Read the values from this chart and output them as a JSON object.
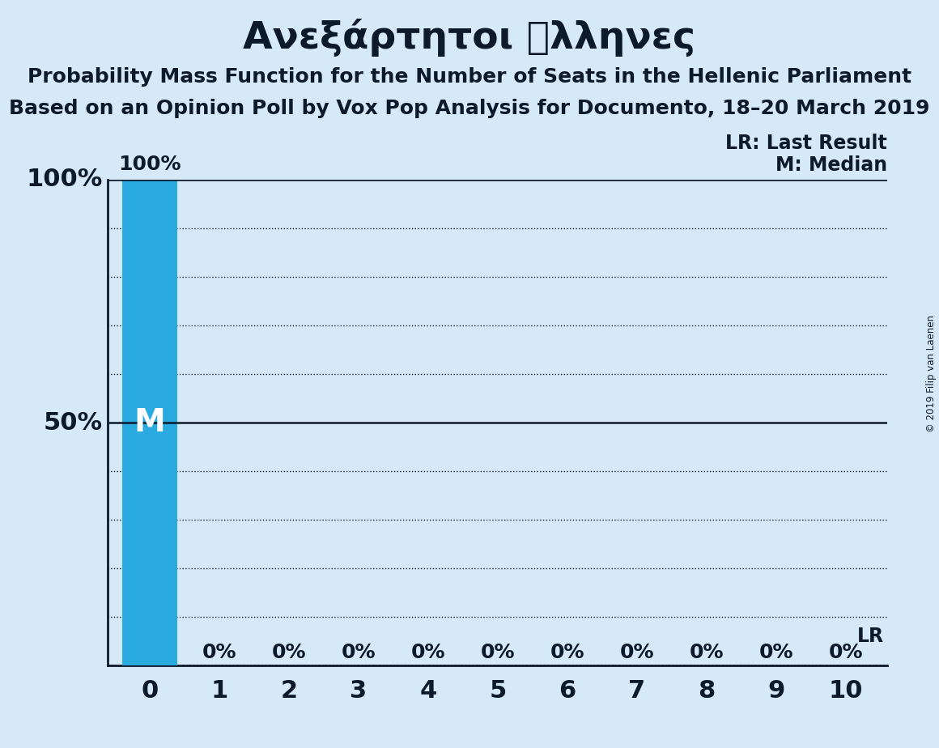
{
  "title": "Ανεξάρτητοι ἞λληνες",
  "subtitle1": "Probability Mass Function for the Number of Seats in the Hellenic Parliament",
  "subtitle2": "Based on an Opinion Poll by Vox Pop Analysis for Documento, 18–20 March 2019",
  "copyright": "© 2019 Filip van Laenen",
  "x_values": [
    0,
    1,
    2,
    3,
    4,
    5,
    6,
    7,
    8,
    9,
    10
  ],
  "y_values": [
    1.0,
    0.0,
    0.0,
    0.0,
    0.0,
    0.0,
    0.0,
    0.0,
    0.0,
    0.0,
    0.0
  ],
  "bar_color": "#29abe2",
  "background_color": "#d6e9f8",
  "median_value": 0,
  "last_result_value": 0,
  "yticks": [
    0.0,
    0.1,
    0.2,
    0.3,
    0.4,
    0.5,
    0.6,
    0.7,
    0.8,
    0.9,
    1.0
  ],
  "bar_label_100": "100%",
  "bar_label_0": "0%",
  "median_label": "M",
  "lr_label": "LR",
  "legend_lr": "LR: Last Result",
  "legend_m": "M: Median",
  "title_fontsize": 34,
  "subtitle_fontsize": 18,
  "axis_label_fontsize": 22,
  "bar_label_fontsize": 18,
  "legend_fontsize": 17,
  "bar_width": 0.8,
  "text_color": "#0d1a2b"
}
